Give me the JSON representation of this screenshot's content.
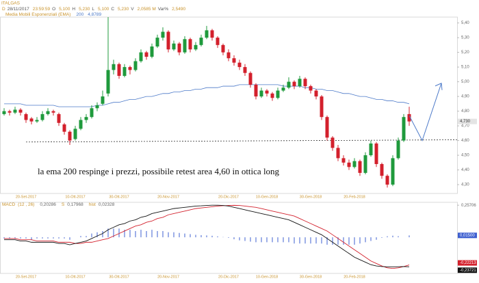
{
  "chart_data": [
    {
      "type": "candlestick",
      "title": "ITALGAS",
      "info": [
        "D",
        "28/11/2017",
        "23:59:59",
        "O",
        "5,100",
        "H",
        "5,230",
        "L",
        "5,100",
        "C",
        "5,230",
        "V",
        "2,0585 M",
        "Var%",
        "2,5490"
      ],
      "categories": [
        null,
        null,
        null,
        null,
        "20-Set-2017",
        null,
        null,
        null,
        null,
        null,
        null,
        null,
        null,
        "10-Ott-2017",
        null,
        null,
        null,
        null,
        null,
        null,
        null,
        "30-Ott-2017",
        null,
        null,
        null,
        null,
        null,
        null,
        null,
        null,
        "20-Nov-2017",
        null,
        null,
        null,
        null,
        null,
        null,
        null,
        null,
        null,
        null,
        "20-Dic-2017",
        null,
        null,
        null,
        null,
        null,
        null,
        "10-Gen-2018",
        null,
        null,
        null,
        null,
        null,
        null,
        null,
        "30-Gen-2018",
        null,
        null,
        null,
        null,
        null,
        null,
        null,
        "20-Feb-2018",
        null,
        null,
        null,
        null,
        null,
        null,
        null,
        null,
        null,
        null
      ],
      "open": [
        4.78,
        4.8,
        4.79,
        4.81,
        4.78,
        4.75,
        4.73,
        4.74,
        4.78,
        4.8,
        4.78,
        4.71,
        4.66,
        4.61,
        4.68,
        4.74,
        4.76,
        4.82,
        4.85,
        4.92,
        5.08,
        5.12,
        5.04,
        5.1,
        5.08,
        5.14,
        5.2,
        5.17,
        5.24,
        5.3,
        5.34,
        5.22,
        5.26,
        5.2,
        5.29,
        5.22,
        5.25,
        5.3,
        5.35,
        5.3,
        5.25,
        5.2,
        5.16,
        5.13,
        5.1,
        5.06,
        4.98,
        4.9,
        4.94,
        4.92,
        4.89,
        4.94,
        4.96,
        5.0,
        4.97,
        5.02,
        4.97,
        4.94,
        4.9,
        4.76,
        4.62,
        4.55,
        4.48,
        4.45,
        4.42,
        4.46,
        4.38,
        4.5,
        4.58,
        4.44,
        4.36,
        4.3,
        4.48,
        4.6,
        4.78
      ],
      "high": [
        4.82,
        4.81,
        4.83,
        4.82,
        4.79,
        4.76,
        4.76,
        4.8,
        4.82,
        4.81,
        4.79,
        4.72,
        4.67,
        4.7,
        4.76,
        4.78,
        4.84,
        4.86,
        4.94,
        5.44,
        5.15,
        5.13,
        5.12,
        5.11,
        5.16,
        5.22,
        5.21,
        5.26,
        5.32,
        5.37,
        5.35,
        5.28,
        5.27,
        5.31,
        5.3,
        5.27,
        5.32,
        5.38,
        5.36,
        5.31,
        5.26,
        5.22,
        5.18,
        5.15,
        5.12,
        5.07,
        4.99,
        4.96,
        4.95,
        4.93,
        4.96,
        4.98,
        5.03,
        5.01,
        5.04,
        5.03,
        4.98,
        4.95,
        4.91,
        4.77,
        4.63,
        4.57,
        4.5,
        4.47,
        4.48,
        4.47,
        4.52,
        4.6,
        4.59,
        4.45,
        4.37,
        4.5,
        4.62,
        4.78,
        4.83
      ],
      "low": [
        4.77,
        4.77,
        4.78,
        4.77,
        4.72,
        4.71,
        4.72,
        4.73,
        4.77,
        4.77,
        4.7,
        4.64,
        4.57,
        4.6,
        4.67,
        4.72,
        4.75,
        4.8,
        4.84,
        4.9,
        5.05,
        5.02,
        5.03,
        5.05,
        5.07,
        5.13,
        5.15,
        5.16,
        5.23,
        5.28,
        5.2,
        5.21,
        5.18,
        5.19,
        5.2,
        5.21,
        5.24,
        5.29,
        5.28,
        5.23,
        5.18,
        5.14,
        5.11,
        5.08,
        5.04,
        4.96,
        4.88,
        4.89,
        4.9,
        4.87,
        4.88,
        4.93,
        4.95,
        4.95,
        4.96,
        4.95,
        4.92,
        4.88,
        4.74,
        4.6,
        4.53,
        4.46,
        4.43,
        4.4,
        4.41,
        4.36,
        4.37,
        4.49,
        4.42,
        4.34,
        4.28,
        4.29,
        4.47,
        4.59,
        4.7
      ],
      "close": [
        4.8,
        4.79,
        4.81,
        4.79,
        4.74,
        4.73,
        4.74,
        4.78,
        4.8,
        4.79,
        4.72,
        4.66,
        4.6,
        4.68,
        4.74,
        4.76,
        4.82,
        4.84,
        4.9,
        5.08,
        5.12,
        5.04,
        5.1,
        5.08,
        5.14,
        5.2,
        5.17,
        5.24,
        5.3,
        5.34,
        5.22,
        5.26,
        5.2,
        5.29,
        5.22,
        5.25,
        5.3,
        5.35,
        5.3,
        5.25,
        5.2,
        5.16,
        5.13,
        5.1,
        5.06,
        4.98,
        4.9,
        4.94,
        4.92,
        4.89,
        4.94,
        4.96,
        5.0,
        4.97,
        5.02,
        4.97,
        4.94,
        4.9,
        4.76,
        4.62,
        4.55,
        4.48,
        4.45,
        4.42,
        4.46,
        4.38,
        4.5,
        4.58,
        4.44,
        4.36,
        4.3,
        4.48,
        4.6,
        4.76,
        4.73
      ],
      "last_label": "4,730",
      "up_color": "#1f9a3c",
      "down_color": "#d3202c",
      "ylim": [
        4.24,
        5.44
      ],
      "yticks": [
        {
          "value": 4.3,
          "label": "4,30"
        },
        {
          "value": 4.4,
          "label": "4,40"
        },
        {
          "value": 4.5,
          "label": "4,50"
        },
        {
          "value": 4.6,
          "label": "4,60"
        },
        {
          "value": 4.7,
          "label": "4,70"
        },
        {
          "value": 4.8,
          "label": "4,80"
        },
        {
          "value": 4.9,
          "label": "4,90"
        },
        {
          "value": 5.0,
          "label": "5,00"
        },
        {
          "value": 5.1,
          "label": "5,10"
        },
        {
          "value": 5.2,
          "label": "5,20"
        },
        {
          "value": 5.3,
          "label": "5,30"
        },
        {
          "value": 5.4,
          "label": "5,40"
        }
      ],
      "ema": {
        "name": "Media Mobili Esponenziali (EMA)",
        "period": 200,
        "last": "4,8789",
        "color": "#4a78c8",
        "values": [
          4.85,
          4.85,
          4.85,
          4.85,
          4.84,
          4.84,
          4.84,
          4.84,
          4.84,
          4.84,
          4.83,
          4.83,
          4.83,
          4.83,
          4.83,
          4.83,
          4.83,
          4.84,
          4.84,
          4.85,
          4.86,
          4.86,
          4.87,
          4.88,
          4.88,
          4.89,
          4.9,
          4.9,
          4.91,
          4.92,
          4.92,
          4.93,
          4.93,
          4.94,
          4.94,
          4.95,
          4.95,
          4.96,
          4.96,
          4.96,
          4.97,
          4.97,
          4.97,
          4.98,
          4.98,
          4.98,
          4.98,
          4.98,
          4.98,
          4.98,
          4.98,
          4.97,
          4.97,
          4.97,
          4.97,
          4.96,
          4.96,
          4.95,
          4.95,
          4.94,
          4.94,
          4.93,
          4.92,
          4.92,
          4.91,
          4.9,
          4.9,
          4.89,
          4.88,
          4.88,
          4.87,
          4.87,
          4.86,
          4.86,
          4.85
        ]
      },
      "annotation": "la ema 200 respinge i prezzi, possibile retest area 4,60 in ottica long",
      "support": [
        4.59,
        4.605
      ],
      "projection": {
        "color": "#4a78c8",
        "values": [
          4.77,
          4.6,
          4.99
        ]
      }
    },
    {
      "type": "macd",
      "title": "MACD",
      "params": "(12 , 26)",
      "readout": [
        "0,20286",
        "S",
        "0,17968",
        "hist",
        "0,02328"
      ],
      "categories": [
        null,
        null,
        null,
        null,
        "20-Set-2017",
        null,
        null,
        null,
        null,
        null,
        null,
        null,
        null,
        "10-Ott-2017",
        null,
        null,
        null,
        null,
        null,
        null,
        null,
        "30-Ott-2017",
        null,
        null,
        null,
        null,
        null,
        null,
        null,
        null,
        "20-Nov-2017",
        null,
        null,
        null,
        null,
        null,
        null,
        null,
        null,
        null,
        null,
        "20-Dic-2017",
        null,
        null,
        null,
        null,
        null,
        null,
        "10-Gen-2018",
        null,
        null,
        null,
        null,
        null,
        null,
        null,
        "30-Gen-2018",
        null,
        null,
        null,
        null,
        null,
        null,
        null,
        "20-Feb-2018",
        null,
        null,
        null,
        null,
        null,
        null,
        null,
        null,
        null,
        null
      ],
      "ylim": [
        -0.29,
        0.28
      ],
      "yticks": [
        {
          "value": 0.25706,
          "label": "0,25706"
        }
      ],
      "hist": {
        "color": "#3d5fd0",
        "last_label": "0,01500",
        "values": [
          -0.01,
          -0.01,
          -0.01,
          -0.01,
          -0.01,
          -0.02,
          -0.01,
          -0.01,
          -0.01,
          -0.01,
          -0.01,
          -0.01,
          -0.02,
          0,
          0.01,
          0.01,
          0.03,
          0.04,
          0.05,
          0.07,
          0.07,
          0.07,
          0.06,
          0.06,
          0.05,
          0.06,
          0.05,
          0.06,
          0.05,
          0.05,
          0.04,
          0.04,
          0.035,
          0.03,
          0.025,
          0.02,
          0.017,
          0.015,
          0.012,
          0.007,
          0.002,
          -0.005,
          -0.016,
          -0.025,
          -0.03,
          -0.035,
          -0.04,
          -0.04,
          -0.04,
          -0.04,
          -0.04,
          -0.04,
          -0.04,
          -0.05,
          -0.05,
          -0.05,
          -0.05,
          -0.05,
          -0.05,
          -0.06,
          -0.06,
          -0.06,
          -0.06,
          -0.06,
          -0.06,
          -0.05,
          -0.04,
          -0.03,
          -0.02,
          -0.005,
          0.008,
          0.013,
          0.009,
          0.0,
          0.015
        ]
      },
      "macd": {
        "color": "#111111",
        "last_label": "-0,23721",
        "values": [
          -0.02,
          -0.02,
          -0.02,
          -0.03,
          -0.03,
          -0.04,
          -0.04,
          -0.04,
          -0.04,
          -0.04,
          -0.05,
          -0.05,
          -0.06,
          -0.05,
          -0.04,
          -0.03,
          -0.01,
          0.01,
          0.03,
          0.06,
          0.08,
          0.1,
          0.11,
          0.13,
          0.14,
          0.16,
          0.17,
          0.19,
          0.2,
          0.21,
          0.22,
          0.23,
          0.235,
          0.24,
          0.245,
          0.25,
          0.252,
          0.255,
          0.257,
          0.257,
          0.255,
          0.25,
          0.24,
          0.23,
          0.22,
          0.21,
          0.2,
          0.19,
          0.18,
          0.17,
          0.16,
          0.15,
          0.14,
          0.12,
          0.1,
          0.08,
          0.06,
          0.04,
          0.02,
          -0.01,
          -0.04,
          -0.07,
          -0.1,
          -0.13,
          -0.16,
          -0.18,
          -0.2,
          -0.22,
          -0.23,
          -0.235,
          -0.237,
          -0.237,
          -0.236,
          -0.235,
          -0.237
        ]
      },
      "signal": {
        "color": "#d3202c",
        "last_label": "-0,22213",
        "values": [
          -0.01,
          -0.01,
          -0.01,
          -0.02,
          -0.02,
          -0.02,
          -0.03,
          -0.03,
          -0.03,
          -0.03,
          -0.04,
          -0.04,
          -0.04,
          -0.05,
          -0.05,
          -0.04,
          -0.04,
          -0.03,
          -0.02,
          -0.01,
          0.01,
          0.03,
          0.05,
          0.07,
          0.09,
          0.1,
          0.12,
          0.13,
          0.15,
          0.16,
          0.18,
          0.19,
          0.2,
          0.21,
          0.22,
          0.23,
          0.235,
          0.24,
          0.245,
          0.25,
          0.253,
          0.255,
          0.256,
          0.255,
          0.25,
          0.245,
          0.24,
          0.23,
          0.22,
          0.21,
          0.2,
          0.19,
          0.18,
          0.17,
          0.15,
          0.13,
          0.11,
          0.09,
          0.07,
          0.05,
          0.02,
          -0.01,
          -0.04,
          -0.07,
          -0.1,
          -0.13,
          -0.16,
          -0.19,
          -0.21,
          -0.23,
          -0.245,
          -0.25,
          -0.245,
          -0.235,
          -0.222
        ]
      }
    }
  ]
}
